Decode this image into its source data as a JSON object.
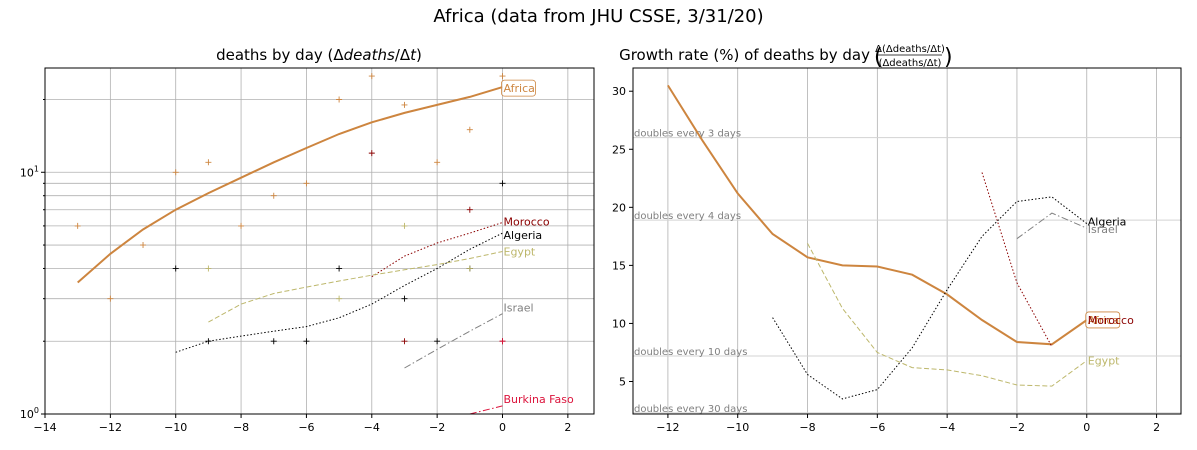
{
  "suptitle": "Africa (data from JHU CSSE, 3/31/20)",
  "colors": {
    "Africa": "#cd853f",
    "Morocco": "#8b0000",
    "Algeria": "#000000",
    "Egypt": "#bdb76b",
    "Israel": "#808080",
    "BurkinaFaso": "#dc143c",
    "grid": "#b0b0b0",
    "refline": "#d3d3d3",
    "reftext": "#808080"
  },
  "chart_data": [
    {
      "type": "line",
      "scale": "log",
      "title_prefix": "deaths by day (Δ",
      "title_italic": "deaths",
      "title_mid": "/Δ",
      "title_italic2": "t",
      "title_suffix": ")",
      "xlim": [
        -14,
        2.8
      ],
      "ylim": [
        1,
        27
      ],
      "xticks": [
        -14,
        -12,
        -10,
        -8,
        -6,
        -4,
        -2,
        0,
        2
      ],
      "xtick_labels": [
        "−14",
        "−12",
        "−10",
        "−8",
        "−6",
        "−4",
        "−2",
        "0",
        "2"
      ],
      "yticks": [
        1,
        10
      ],
      "ytick_labels": [
        "10^0",
        "10^1"
      ],
      "ytick_base": "10",
      "ytick_exps": [
        "0",
        "1"
      ],
      "series": [
        {
          "name": "Africa",
          "label": "Africa",
          "style": "solid",
          "width": 2,
          "x": [
            -13,
            -12,
            -11,
            -10,
            -9,
            -8,
            -7,
            -6,
            -5,
            -4,
            -3,
            -2,
            -1,
            0
          ],
          "y": [
            3.5,
            4.6,
            5.8,
            7.0,
            8.2,
            9.5,
            11.0,
            12.6,
            14.4,
            16.1,
            17.6,
            19.0,
            20.5,
            22.5
          ],
          "points_x": [
            -13,
            -12,
            -11,
            -10,
            -9,
            -8,
            -7,
            -6,
            -5,
            -4,
            -3,
            -2,
            -1,
            0
          ],
          "points_y": [
            6,
            3,
            5,
            10,
            11,
            6,
            8,
            9,
            20,
            25,
            19,
            11,
            15,
            25
          ]
        },
        {
          "name": "Morocco",
          "label": "Morocco",
          "style": "dotted",
          "width": 1,
          "x": [
            -4,
            -3,
            -2,
            -1,
            0
          ],
          "y": [
            3.7,
            4.5,
            5.1,
            5.6,
            6.2
          ],
          "points_x": [
            -4,
            -3,
            -1,
            0
          ],
          "points_y": [
            12,
            2,
            7,
            2
          ]
        },
        {
          "name": "Algeria",
          "label": "Algeria",
          "style": "dotted",
          "width": 1,
          "x": [
            -10,
            -9,
            -8,
            -7,
            -6,
            -5,
            -4,
            -3,
            -2,
            -1,
            0
          ],
          "y": [
            1.8,
            2.0,
            2.1,
            2.2,
            2.3,
            2.5,
            2.85,
            3.4,
            4.0,
            4.8,
            5.6
          ],
          "points_x": [
            -10,
            -9,
            -7,
            -6,
            -5,
            -3,
            -2,
            -1,
            0
          ],
          "points_y": [
            4,
            2,
            2,
            2,
            4,
            3,
            2,
            4,
            9
          ]
        },
        {
          "name": "Egypt",
          "label": "Egypt",
          "style": "dashed",
          "width": 1,
          "x": [
            -9,
            -8,
            -7,
            -6,
            -5,
            -4,
            -3,
            -2,
            -1,
            0
          ],
          "y": [
            2.4,
            2.85,
            3.15,
            3.35,
            3.55,
            3.75,
            3.95,
            4.15,
            4.4,
            4.7
          ],
          "points_x": [
            -9,
            -5,
            -3,
            -1
          ],
          "points_y": [
            4,
            3,
            6,
            4
          ]
        },
        {
          "name": "Israel",
          "label": "Israel",
          "style": "dashdot",
          "width": 1,
          "x": [
            -3,
            -2,
            -1,
            0
          ],
          "y": [
            1.55,
            1.85,
            2.2,
            2.6
          ],
          "points_x": [],
          "points_y": []
        },
        {
          "name": "BurkinaFaso",
          "label": "Burkina Faso",
          "style": "dashdot",
          "width": 1,
          "x": [
            -1,
            0
          ],
          "y": [
            1.0,
            1.08
          ],
          "points_x": [
            0
          ],
          "points_y": [
            2
          ]
        }
      ]
    },
    {
      "type": "line",
      "scale": "linear",
      "title": "Growth rate (%) of deaths by day",
      "title_frac_num": "Δ(Δdeaths/Δt)",
      "title_frac_den": "(Δdeaths/Δt)",
      "xlim": [
        -13,
        2.7
      ],
      "ylim": [
        2.2,
        32
      ],
      "xticks": [
        -12,
        -10,
        -8,
        -6,
        -4,
        -2,
        0,
        2
      ],
      "xtick_labels": [
        "−12",
        "−10",
        "−8",
        "−6",
        "−4",
        "−2",
        "0",
        "2"
      ],
      "yticks": [
        5,
        10,
        15,
        20,
        25,
        30
      ],
      "ytick_labels": [
        "5",
        "10",
        "15",
        "20",
        "25",
        "30"
      ],
      "reference_lines": [
        {
          "label": "doubles every 3 days",
          "y": 26.0
        },
        {
          "label": "doubles every 4 days",
          "y": 18.9
        },
        {
          "label": "doubles every 10 days",
          "y": 7.2
        },
        {
          "label": "doubles every 30 days",
          "y": 2.3
        }
      ],
      "series": [
        {
          "name": "Africa",
          "label": "Africa",
          "style": "solid",
          "width": 2,
          "x": [
            -12,
            -11,
            -10,
            -9,
            -8,
            -7,
            -6,
            -5,
            -4,
            -3,
            -2,
            -1,
            0
          ],
          "y": [
            30.5,
            25.7,
            21.2,
            17.7,
            15.7,
            15.0,
            14.9,
            14.2,
            12.5,
            10.3,
            8.4,
            8.2,
            10.3
          ]
        },
        {
          "name": "Morocco",
          "label": "Morocco",
          "style": "dotted",
          "width": 1,
          "x": [
            -3,
            -2,
            -1
          ],
          "y": [
            23.0,
            13.5,
            8.0
          ]
        },
        {
          "name": "Algeria",
          "label": "Algeria",
          "style": "dotted",
          "width": 1,
          "x": [
            -9,
            -8,
            -7,
            -6,
            -5,
            -4,
            -3,
            -2,
            -1,
            0
          ],
          "y": [
            10.5,
            5.6,
            3.5,
            4.3,
            7.9,
            12.9,
            17.5,
            20.5,
            20.9,
            18.6
          ]
        },
        {
          "name": "Egypt",
          "label": "Egypt",
          "style": "dashed",
          "width": 1,
          "x": [
            -8,
            -7,
            -6,
            -5,
            -4,
            -3,
            -2,
            -1,
            0
          ],
          "y": [
            16.9,
            11.3,
            7.5,
            6.2,
            6.0,
            5.5,
            4.7,
            4.6,
            6.8
          ]
        },
        {
          "name": "Israel",
          "label": "Israel",
          "style": "dashdot",
          "width": 1,
          "x": [
            -2,
            -1,
            0
          ],
          "y": [
            17.3,
            19.5,
            18.2
          ]
        }
      ]
    }
  ]
}
